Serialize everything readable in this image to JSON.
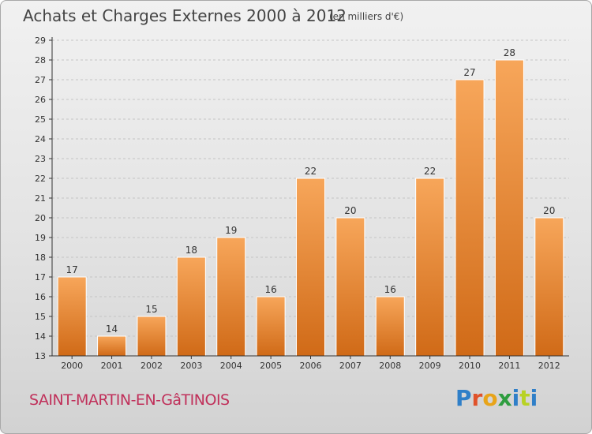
{
  "header": {
    "title": "Achats et Charges Externes 2000 à 2012",
    "unit": "(en milliers d'€)"
  },
  "footer": {
    "commune": "SAINT-MARTIN-EN-GâTINOIS",
    "logo_letters": [
      "P",
      "r",
      "o",
      "x",
      "i",
      "t",
      "i"
    ]
  },
  "colors": {
    "bar_top": "#f7a65a",
    "bar_bottom": "#d06a17",
    "grid": "#c4c4c4",
    "axis": "#333333"
  },
  "chart_data": {
    "type": "bar",
    "title": "Achats et Charges Externes 2000 à 2012",
    "xlabel": "",
    "ylabel": "",
    "categories": [
      "2000",
      "2001",
      "2002",
      "2003",
      "2004",
      "2005",
      "2006",
      "2007",
      "2008",
      "2009",
      "2010",
      "2011",
      "2012"
    ],
    "values": [
      17,
      14,
      15,
      18,
      19,
      16,
      22,
      20,
      16,
      22,
      27,
      28,
      20
    ],
    "ylim": [
      13,
      29
    ],
    "yticks": [
      13,
      14,
      15,
      16,
      17,
      18,
      19,
      20,
      21,
      22,
      23,
      24,
      25,
      26,
      27,
      28,
      29
    ],
    "grid": true,
    "legend": "none"
  }
}
